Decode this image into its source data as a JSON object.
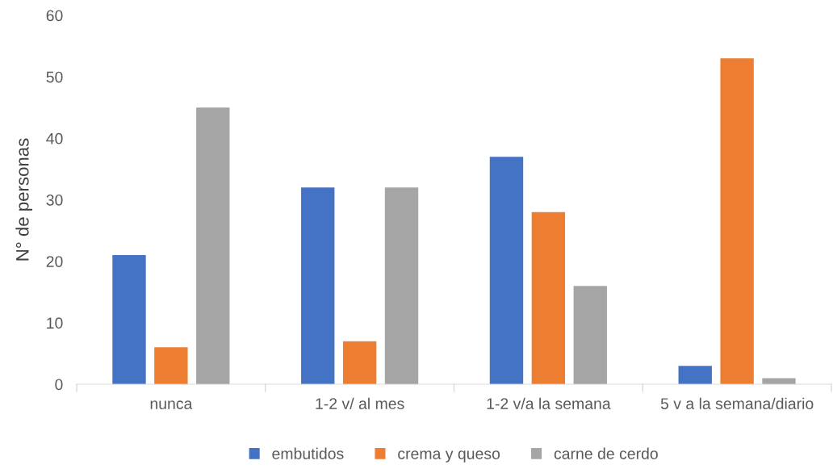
{
  "chart_data": {
    "type": "bar",
    "ylabel": "N° de personas",
    "categories": [
      "nunca",
      "1-2 v/ al mes",
      "1-2 v/a la semana",
      "5 v a la semana/diario"
    ],
    "series": [
      {
        "name": "embutidos",
        "color": "#4472c4",
        "values": [
          21,
          32,
          37,
          3
        ]
      },
      {
        "name": "crema y queso",
        "color": "#ed7d31",
        "values": [
          6,
          7,
          28,
          53
        ]
      },
      {
        "name": "carne de cerdo",
        "color": "#a5a5a5",
        "values": [
          45,
          32,
          16,
          1
        ]
      }
    ],
    "ylim": [
      0,
      60
    ],
    "yticks": [
      0,
      10,
      20,
      30,
      40,
      50,
      60
    ],
    "grid": false,
    "legend": "bottom"
  }
}
